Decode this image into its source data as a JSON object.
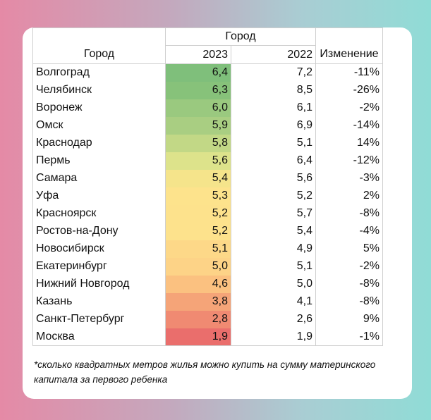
{
  "header": {
    "city_label": "Город",
    "group_label": "Город",
    "y2023_label": "2023",
    "y2022_label": "2022",
    "change_label": "Изменение"
  },
  "chart_data": {
    "type": "table",
    "columns": [
      "Город",
      "2023",
      "2022",
      "Изменение"
    ],
    "rows": [
      {
        "city": "Волгоград",
        "v2023": "6,4",
        "v2022": "7,2",
        "change": "-11%",
        "color": "#7fbf7b"
      },
      {
        "city": "Челябинск",
        "v2023": "6,3",
        "v2022": "8,5",
        "change": "-26%",
        "color": "#87c27a"
      },
      {
        "city": "Воронеж",
        "v2023": "6,0",
        "v2022": "6,1",
        "change": "-2%",
        "color": "#9ac97f"
      },
      {
        "city": "Омск",
        "v2023": "5,9",
        "v2022": "6,9",
        "change": "-14%",
        "color": "#a9ce82"
      },
      {
        "city": "Краснодар",
        "v2023": "5,8",
        "v2022": "5,1",
        "change": "14%",
        "color": "#c2d886"
      },
      {
        "city": "Пермь",
        "v2023": "5,6",
        "v2022": "6,4",
        "change": "-12%",
        "color": "#dde38b"
      },
      {
        "city": "Самара",
        "v2023": "5,4",
        "v2022": "5,6",
        "change": "-3%",
        "color": "#f5e48b"
      },
      {
        "city": "Уфа",
        "v2023": "5,3",
        "v2022": "5,2",
        "change": "2%",
        "color": "#fde38c"
      },
      {
        "city": "Красноярск",
        "v2023": "5,2",
        "v2022": "5,7",
        "change": "-8%",
        "color": "#fde28c"
      },
      {
        "city": "Ростов-на-Дону",
        "v2023": "5,2",
        "v2022": "5,4",
        "change": "-4%",
        "color": "#fde28c"
      },
      {
        "city": "Новосибирск",
        "v2023": "5,1",
        "v2022": "4,9",
        "change": "5%",
        "color": "#fdd888"
      },
      {
        "city": "Екатеринбург",
        "v2023": "5,0",
        "v2022": "5,1",
        "change": "-2%",
        "color": "#fdd387"
      },
      {
        "city": "Нижний Новгород",
        "v2023": "4,6",
        "v2022": "5,0",
        "change": "-8%",
        "color": "#fbc180"
      },
      {
        "city": "Казань",
        "v2023": "3,8",
        "v2022": "4,1",
        "change": "-8%",
        "color": "#f5a478"
      },
      {
        "city": "Санкт-Петербург",
        "v2023": "2,8",
        "v2022": "2,6",
        "change": "9%",
        "color": "#f08a72"
      },
      {
        "city": "Москва",
        "v2023": "1,9",
        "v2022": "1,9",
        "change": "-1%",
        "color": "#ea6e6c"
      }
    ]
  },
  "footnote": "*сколько квадратных метров жилья можно купить на сумму материнского капитала за первого ребенка"
}
